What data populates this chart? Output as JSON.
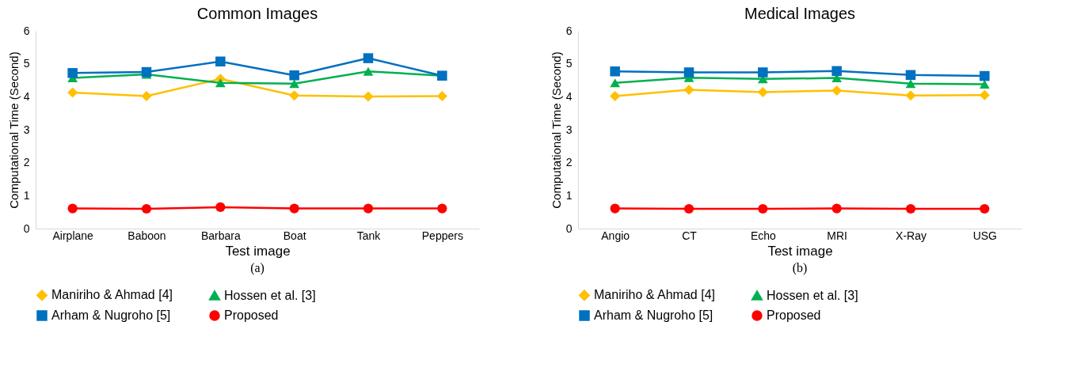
{
  "chart_data": [
    {
      "type": "line",
      "title": "Common Images",
      "xlabel": "Test image",
      "ylabel": "Computational Time (Second)",
      "categories": [
        "Airplane",
        "Baboon",
        "Barbara",
        "Boat",
        "Tank",
        "Peppers"
      ],
      "series": [
        {
          "name": "Maniriho & Ahmad [4]",
          "color": "#ffc000",
          "marker": "diamond",
          "values": [
            4.13,
            4.02,
            4.54,
            4.04,
            4.01,
            4.02
          ]
        },
        {
          "name": "Hossen et al. [3]",
          "color": "#00b050",
          "marker": "triangle",
          "values": [
            4.57,
            4.68,
            4.42,
            4.4,
            4.77,
            4.64
          ]
        },
        {
          "name": "Arham & Nugroho [5]",
          "color": "#0070c0",
          "marker": "square",
          "values": [
            4.72,
            4.75,
            5.07,
            4.65,
            5.17,
            4.64
          ]
        },
        {
          "name": "Proposed",
          "color": "#ff0000",
          "marker": "circle",
          "values": [
            0.61,
            0.6,
            0.65,
            0.61,
            0.61,
            0.61
          ]
        }
      ],
      "ylim": [
        0,
        6
      ],
      "yticks": [
        0,
        1,
        2,
        3,
        4,
        5,
        6
      ],
      "grid": false,
      "legend": "bottom",
      "annotations": [
        "(a)"
      ]
    },
    {
      "type": "line",
      "title": "Medical Images",
      "xlabel": "Test image",
      "ylabel": "Computational Time (Second)",
      "categories": [
        "Angio",
        "CT",
        "Echo",
        "MRI",
        "X-Ray",
        "USG"
      ],
      "series": [
        {
          "name": "Maniriho & Ahmad [4]",
          "color": "#ffc000",
          "marker": "diamond",
          "values": [
            4.02,
            4.21,
            4.14,
            4.19,
            4.04,
            4.05
          ]
        },
        {
          "name": "Hossen et al. [3]",
          "color": "#00b050",
          "marker": "triangle",
          "values": [
            4.42,
            4.58,
            4.54,
            4.57,
            4.4,
            4.38
          ]
        },
        {
          "name": "Arham & Nugroho [5]",
          "color": "#0070c0",
          "marker": "square",
          "values": [
            4.77,
            4.74,
            4.74,
            4.78,
            4.66,
            4.63
          ]
        },
        {
          "name": "Proposed",
          "color": "#ff0000",
          "marker": "circle",
          "values": [
            0.61,
            0.6,
            0.6,
            0.61,
            0.6,
            0.6
          ]
        }
      ],
      "ylim": [
        0,
        6
      ],
      "yticks": [
        0,
        1,
        2,
        3,
        4,
        5,
        6
      ],
      "grid": false,
      "legend": "bottom",
      "annotations": [
        "(b)"
      ]
    }
  ]
}
